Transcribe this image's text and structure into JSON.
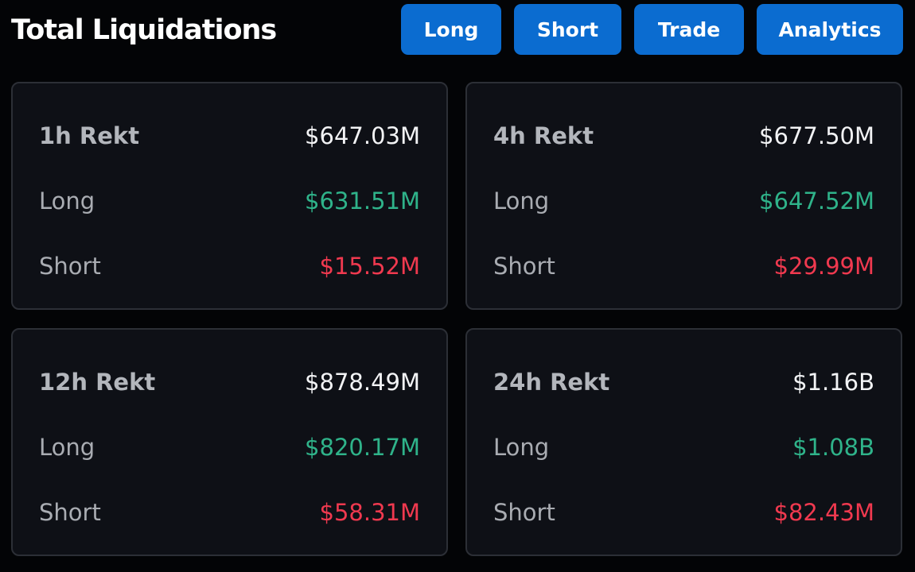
{
  "header": {
    "title": "Total Liquidations",
    "buttons": [
      "Long",
      "Short",
      "Trade",
      "Analytics"
    ]
  },
  "panels": [
    {
      "rows": [
        {
          "label": "1h Rekt",
          "value": "$647.03M"
        },
        {
          "label": "Long",
          "value": "$631.51M"
        },
        {
          "label": "Short",
          "value": "$15.52M"
        }
      ]
    },
    {
      "rows": [
        {
          "label": "4h Rekt",
          "value": "$677.50M"
        },
        {
          "label": "Long",
          "value": "$647.52M"
        },
        {
          "label": "Short",
          "value": "$29.99M"
        }
      ]
    },
    {
      "rows": [
        {
          "label": "12h Rekt",
          "value": "$878.49M"
        },
        {
          "label": "Long",
          "value": "$820.17M"
        },
        {
          "label": "Short",
          "value": "$58.31M"
        }
      ]
    },
    {
      "rows": [
        {
          "label": "24h Rekt",
          "value": "$1.16B"
        },
        {
          "label": "Long",
          "value": "$1.08B"
        },
        {
          "label": "Short",
          "value": "$82.43M"
        }
      ]
    }
  ]
}
